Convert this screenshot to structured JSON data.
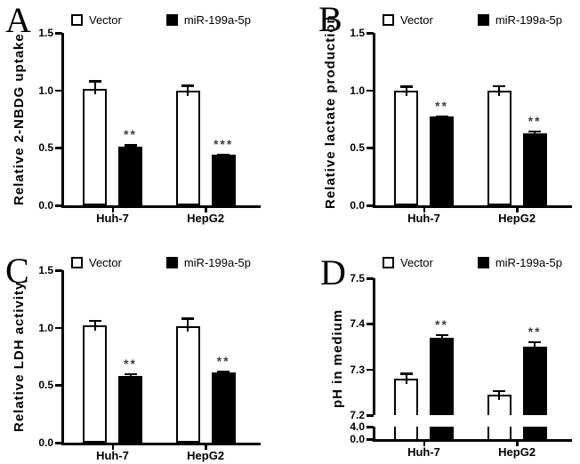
{
  "colors": {
    "background": "#ffffff",
    "bar_outline": "#000000",
    "vector_fill": "#ffffff",
    "mir_fill": "#000000",
    "significance_stars": "#3f3f3f"
  },
  "chart_data": [
    {
      "panel": "A",
      "type": "bar",
      "title": "",
      "ylabel": "Relative 2-NBDG uptake",
      "xlabel": "",
      "categories": [
        "Huh-7",
        "HepG2"
      ],
      "ylim": [
        0,
        1.5
      ],
      "yticks": [
        "0.0",
        "0.5",
        "1.0",
        "1.5"
      ],
      "grid": false,
      "legend_position": "top",
      "series": [
        {
          "name": "Vector",
          "fill": "#ffffff",
          "values": [
            1.01,
            1.0
          ],
          "errors": [
            0.08,
            0.05
          ],
          "significance": [
            "",
            ""
          ]
        },
        {
          "name": "miR-199a-5p",
          "fill": "#000000",
          "values": [
            0.51,
            0.44
          ],
          "errors": [
            0.02,
            0.01
          ],
          "significance": [
            "**",
            "***"
          ]
        }
      ]
    },
    {
      "panel": "B",
      "type": "bar",
      "title": "",
      "ylabel": "Relative lactate production",
      "xlabel": "",
      "categories": [
        "Huh-7",
        "HepG2"
      ],
      "ylim": [
        0,
        1.5
      ],
      "yticks": [
        "0.0",
        "0.5",
        "1.0",
        "1.5"
      ],
      "grid": false,
      "legend_position": "top",
      "series": [
        {
          "name": "Vector",
          "fill": "#ffffff",
          "values": [
            1.0,
            1.0
          ],
          "errors": [
            0.04,
            0.045
          ],
          "significance": [
            "",
            ""
          ]
        },
        {
          "name": "miR-199a-5p",
          "fill": "#000000",
          "values": [
            0.77,
            0.63
          ],
          "errors": [
            0.01,
            0.02
          ],
          "significance": [
            "**",
            "**"
          ]
        }
      ]
    },
    {
      "panel": "C",
      "type": "bar",
      "title": "",
      "ylabel": "Relative LDH activity",
      "xlabel": "",
      "categories": [
        "Huh-7",
        "HepG2"
      ],
      "ylim": [
        0,
        1.5
      ],
      "yticks": [
        "0.0",
        "0.5",
        "1.0",
        "1.5"
      ],
      "grid": false,
      "legend_position": "top",
      "series": [
        {
          "name": "Vector",
          "fill": "#ffffff",
          "values": [
            1.02,
            1.01
          ],
          "errors": [
            0.05,
            0.08
          ],
          "significance": [
            "",
            ""
          ]
        },
        {
          "name": "miR-199a-5p",
          "fill": "#000000",
          "values": [
            0.58,
            0.61
          ],
          "errors": [
            0.025,
            0.02
          ],
          "significance": [
            "**",
            "**"
          ]
        }
      ]
    },
    {
      "panel": "D",
      "type": "bar",
      "title": "",
      "ylabel": "pH in medium",
      "xlabel": "",
      "categories": [
        "Huh-7",
        "HepG2"
      ],
      "ylim": [
        7.2,
        7.5
      ],
      "yticks": [
        "7.2",
        "7.3",
        "7.4",
        "7.5"
      ],
      "axis_break": {
        "enabled": true,
        "lower_ticks": [
          "4.0",
          "0.0"
        ],
        "break_between": [
          4.0,
          7.2
        ]
      },
      "grid": false,
      "legend_position": "top",
      "series": [
        {
          "name": "Vector",
          "fill": "#ffffff",
          "values": [
            7.28,
            7.245
          ],
          "errors": [
            0.013,
            0.01
          ],
          "significance": [
            "",
            ""
          ]
        },
        {
          "name": "miR-199a-5p",
          "fill": "#000000",
          "values": [
            7.37,
            7.35
          ],
          "errors": [
            0.008,
            0.012
          ],
          "significance": [
            "**",
            "**"
          ]
        }
      ]
    }
  ]
}
